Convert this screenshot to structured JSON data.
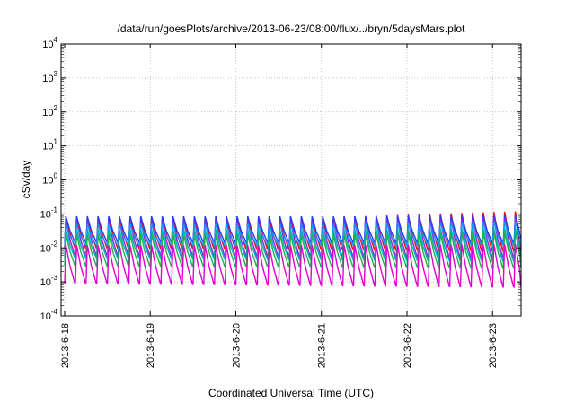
{
  "chart_data": {
    "type": "line",
    "title": "/data/run/goesPlots/archive/2013-06-23/08:00/flux/../bryn/5daysMars.plot",
    "xlabel": "Coordinated Universal Time (UTC)",
    "ylabel": "cSv/day",
    "y_scale": "log",
    "ylim": [
      0.0001,
      10000
    ],
    "xlim": [
      "2013-06-17T23:00",
      "2013-06-23T08:00"
    ],
    "grid": true,
    "x_ticks": [
      "2013-6-18",
      "2013-6-19",
      "2013-6-20",
      "2013-6-21",
      "2013-6-22",
      "2013-6-23"
    ],
    "y_ticks": [
      {
        "base": "10",
        "exp": "-4",
        "value": 0.0001
      },
      {
        "base": "10",
        "exp": "-3",
        "value": 0.001
      },
      {
        "base": "10",
        "exp": "-2",
        "value": 0.01
      },
      {
        "base": "10",
        "exp": "-1",
        "value": 0.1
      },
      {
        "base": "10",
        "exp": "0",
        "value": 1
      },
      {
        "base": "10",
        "exp": "1",
        "value": 10
      },
      {
        "base": "10",
        "exp": "2",
        "value": 100
      },
      {
        "base": "10",
        "exp": "3",
        "value": 1000
      },
      {
        "base": "10",
        "exp": "4",
        "value": 10000
      }
    ],
    "pattern": {
      "description": "sawtooth: sharp rise at each spike then decay to trough",
      "period_hours": 3,
      "first_spike": "2013-06-18T00:00"
    },
    "series": [
      {
        "color": "#ff0000",
        "peak_early": 0.08,
        "peak_late": 0.12,
        "trough_early": 0.01,
        "trough_late": 0.008
      },
      {
        "color": "#2040ff",
        "peak_early": 0.085,
        "peak_late": 0.09,
        "trough_early": 0.015,
        "trough_late": 0.014
      },
      {
        "color": "#8a2be2",
        "peak_early": 0.06,
        "peak_late": 0.075,
        "trough_early": 0.006,
        "trough_late": 0.005
      },
      {
        "color": "#1e90ff",
        "peak_early": 0.05,
        "peak_late": 0.06,
        "trough_early": 0.012,
        "trough_late": 0.012
      },
      {
        "color": "#00b4b4",
        "peak_early": 0.035,
        "peak_late": 0.04,
        "trough_early": 0.005,
        "trough_late": 0.004
      },
      {
        "color": "#20b050",
        "peak_early": 0.025,
        "peak_late": 0.03,
        "trough_early": 0.003,
        "trough_late": 0.0025
      },
      {
        "color": "#e000d0",
        "peak_early": 0.012,
        "peak_late": 0.013,
        "trough_early": 0.0009,
        "trough_late": 0.0007
      }
    ]
  }
}
